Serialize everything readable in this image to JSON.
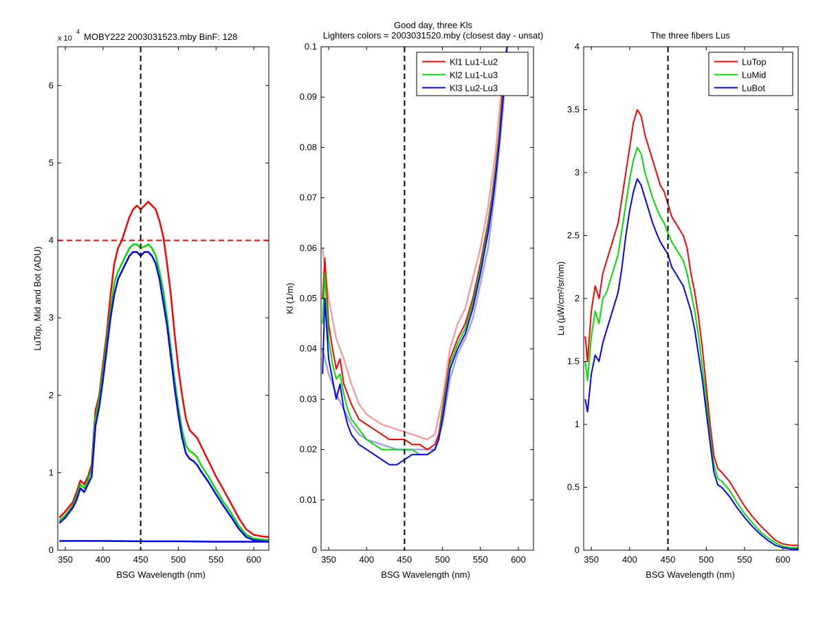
{
  "chart_data": [
    {
      "type": "line",
      "exponent_label": {
        "base": "x 10",
        "power": "4"
      },
      "title": "MOBY222  2003031523.mby BinF: 128",
      "xlabel": "BSG Wavelength (nm)",
      "ylabel": "LuTop, Mid and Bot (ADU)",
      "xlim": [
        340,
        620
      ],
      "ylim": [
        0,
        6.5
      ],
      "xticks": [
        350,
        400,
        450,
        500,
        550,
        600
      ],
      "yticks": [
        0,
        1,
        2,
        3,
        4,
        5,
        6
      ],
      "grid": false,
      "legend": null,
      "reference_lines": [
        {
          "orientation": "vertical",
          "value": 450,
          "color": "#000000",
          "style": "dashed"
        },
        {
          "orientation": "horizontal",
          "value": 4,
          "color": "#ff0000",
          "style": "dashed"
        }
      ],
      "series": [
        {
          "color": "#ff0000",
          "x": [
            342,
            350,
            360,
            365,
            370,
            375,
            380,
            385,
            390,
            395,
            400,
            405,
            410,
            415,
            420,
            425,
            430,
            435,
            440,
            445,
            450,
            455,
            460,
            465,
            470,
            475,
            480,
            485,
            490,
            495,
            500,
            505,
            510,
            515,
            520,
            525,
            530,
            540,
            550,
            560,
            570,
            580,
            590,
            600,
            610,
            620
          ],
          "y": [
            0.42,
            0.5,
            0.62,
            0.75,
            0.9,
            0.85,
            0.95,
            1.1,
            1.8,
            2.0,
            2.4,
            2.8,
            3.3,
            3.7,
            3.9,
            4.0,
            4.15,
            4.3,
            4.4,
            4.45,
            4.4,
            4.45,
            4.5,
            4.45,
            4.4,
            4.25,
            4.05,
            3.7,
            3.3,
            2.8,
            2.35,
            2.0,
            1.7,
            1.55,
            1.5,
            1.45,
            1.35,
            1.15,
            0.95,
            0.78,
            0.6,
            0.42,
            0.27,
            0.2,
            0.18,
            0.17
          ]
        },
        {
          "color": "#00dd00",
          "x": [
            342,
            350,
            360,
            365,
            370,
            375,
            380,
            385,
            390,
            395,
            400,
            405,
            410,
            415,
            420,
            425,
            430,
            435,
            440,
            445,
            450,
            455,
            460,
            465,
            470,
            475,
            480,
            485,
            490,
            495,
            500,
            505,
            510,
            515,
            520,
            525,
            530,
            540,
            550,
            560,
            570,
            580,
            590,
            600,
            610,
            620
          ],
          "y": [
            0.38,
            0.45,
            0.58,
            0.7,
            0.85,
            0.8,
            0.9,
            1.05,
            1.7,
            1.95,
            2.3,
            2.7,
            3.1,
            3.45,
            3.6,
            3.7,
            3.8,
            3.9,
            3.95,
            3.95,
            3.9,
            3.92,
            3.95,
            3.9,
            3.8,
            3.6,
            3.35,
            3.0,
            2.6,
            2.2,
            1.85,
            1.55,
            1.35,
            1.28,
            1.25,
            1.2,
            1.1,
            0.95,
            0.78,
            0.62,
            0.48,
            0.32,
            0.2,
            0.15,
            0.14,
            0.13
          ]
        },
        {
          "color": "#0000ff",
          "x": [
            342,
            350,
            360,
            365,
            370,
            375,
            380,
            385,
            390,
            395,
            400,
            405,
            410,
            415,
            420,
            425,
            430,
            435,
            440,
            445,
            450,
            455,
            460,
            465,
            470,
            475,
            480,
            485,
            490,
            495,
            500,
            505,
            510,
            515,
            520,
            525,
            530,
            540,
            550,
            560,
            570,
            580,
            590,
            600,
            610,
            620
          ],
          "y": [
            0.35,
            0.42,
            0.55,
            0.65,
            0.8,
            0.75,
            0.85,
            0.95,
            1.6,
            1.85,
            2.2,
            2.6,
            3.0,
            3.3,
            3.5,
            3.6,
            3.7,
            3.8,
            3.85,
            3.85,
            3.8,
            3.85,
            3.85,
            3.8,
            3.7,
            3.5,
            3.2,
            2.9,
            2.5,
            2.1,
            1.75,
            1.45,
            1.25,
            1.18,
            1.15,
            1.1,
            1.02,
            0.88,
            0.72,
            0.57,
            0.43,
            0.28,
            0.17,
            0.13,
            0.12,
            0.11
          ]
        },
        {
          "color": "#0000ff",
          "x": [
            342,
            400,
            450,
            500,
            550,
            600,
            620
          ],
          "y": [
            0.12,
            0.12,
            0.115,
            0.115,
            0.11,
            0.11,
            0.11
          ]
        }
      ]
    },
    {
      "type": "line",
      "title": "Good day, three Kls",
      "subtitle": "Lighters colors = 2003031520.mby (closest day - unsat)",
      "xlabel": "BSG Wavelength (nm)",
      "ylabel": "Kl (1/m)",
      "xlim": [
        340,
        620
      ],
      "ylim": [
        0,
        0.1
      ],
      "xticks": [
        350,
        400,
        450,
        500,
        550,
        600
      ],
      "yticks": [
        0,
        0.01,
        0.02,
        0.03,
        0.04,
        0.05,
        0.06,
        0.07,
        0.08,
        0.09,
        0.1
      ],
      "grid": false,
      "legend": "top-right",
      "reference_lines": [
        {
          "orientation": "vertical",
          "value": 450,
          "color": "#000000",
          "style": "dashed"
        }
      ],
      "series": [
        {
          "name": "Kl1 Lu1-Lu2",
          "color": "#ff0000",
          "x": [
            342,
            345,
            350,
            355,
            360,
            365,
            370,
            375,
            380,
            390,
            400,
            410,
            420,
            430,
            440,
            450,
            460,
            470,
            480,
            490,
            495,
            500,
            505,
            510,
            520,
            530,
            540,
            550,
            560,
            565,
            570,
            575,
            580,
            585
          ],
          "y": [
            0.05,
            0.058,
            0.045,
            0.04,
            0.036,
            0.038,
            0.033,
            0.031,
            0.029,
            0.026,
            0.025,
            0.024,
            0.023,
            0.022,
            0.022,
            0.022,
            0.021,
            0.021,
            0.02,
            0.021,
            0.023,
            0.028,
            0.033,
            0.038,
            0.042,
            0.045,
            0.05,
            0.057,
            0.065,
            0.07,
            0.076,
            0.083,
            0.093,
            0.1
          ]
        },
        {
          "name": "Kl2 Lu1-Lu3",
          "color": "#00dd00",
          "x": [
            342,
            345,
            350,
            355,
            360,
            365,
            370,
            375,
            380,
            390,
            400,
            410,
            420,
            430,
            440,
            450,
            460,
            470,
            480,
            490,
            495,
            500,
            505,
            510,
            520,
            530,
            540,
            550,
            560,
            565,
            570,
            575,
            580,
            585
          ],
          "y": [
            0.045,
            0.055,
            0.042,
            0.037,
            0.034,
            0.035,
            0.031,
            0.028,
            0.026,
            0.024,
            0.022,
            0.021,
            0.02,
            0.02,
            0.02,
            0.02,
            0.02,
            0.019,
            0.019,
            0.02,
            0.022,
            0.027,
            0.032,
            0.037,
            0.041,
            0.044,
            0.049,
            0.056,
            0.064,
            0.069,
            0.075,
            0.082,
            0.091,
            0.1
          ]
        },
        {
          "name": "Kl3 Lu2-Lu3",
          "color": "#0000ff",
          "x": [
            342,
            345,
            350,
            355,
            360,
            365,
            370,
            375,
            380,
            390,
            400,
            410,
            420,
            430,
            440,
            450,
            460,
            470,
            480,
            490,
            495,
            500,
            505,
            510,
            520,
            530,
            540,
            550,
            560,
            565,
            570,
            575,
            580,
            585
          ],
          "y": [
            0.035,
            0.05,
            0.038,
            0.034,
            0.03,
            0.033,
            0.028,
            0.025,
            0.023,
            0.021,
            0.02,
            0.019,
            0.018,
            0.017,
            0.017,
            0.018,
            0.019,
            0.019,
            0.019,
            0.02,
            0.022,
            0.026,
            0.031,
            0.036,
            0.04,
            0.043,
            0.048,
            0.055,
            0.063,
            0.068,
            0.074,
            0.081,
            0.09,
            0.1
          ]
        },
        {
          "color": "#f4a0a0",
          "x": [
            342,
            350,
            360,
            370,
            380,
            390,
            400,
            420,
            440,
            460,
            480,
            490,
            500,
            510,
            520,
            530,
            540,
            550,
            560,
            570,
            580,
            585
          ],
          "y": [
            0.06,
            0.05,
            0.042,
            0.038,
            0.033,
            0.029,
            0.027,
            0.025,
            0.024,
            0.023,
            0.022,
            0.023,
            0.03,
            0.04,
            0.045,
            0.048,
            0.054,
            0.06,
            0.068,
            0.079,
            0.095,
            0.1
          ]
        },
        {
          "color": "#a0a0f4",
          "x": [
            342,
            350,
            360,
            370,
            380,
            390,
            400,
            420,
            440,
            460,
            480,
            490,
            500,
            510,
            520,
            530,
            540,
            550,
            560,
            570,
            580,
            585
          ],
          "y": [
            0.04,
            0.035,
            0.031,
            0.028,
            0.025,
            0.023,
            0.022,
            0.021,
            0.02,
            0.02,
            0.02,
            0.02,
            0.025,
            0.034,
            0.039,
            0.042,
            0.046,
            0.053,
            0.06,
            0.072,
            0.088,
            0.1
          ]
        }
      ]
    },
    {
      "type": "line",
      "title": "The three fibers Lus",
      "xlabel": "BSG Wavelength (nm)",
      "ylabel": "Lu (µW/cm²/sr/nm)",
      "xlim": [
        340,
        620
      ],
      "ylim": [
        0,
        4
      ],
      "xticks": [
        350,
        400,
        450,
        500,
        550,
        600
      ],
      "yticks": [
        0,
        0.5,
        1,
        1.5,
        2,
        2.5,
        3,
        3.5,
        4
      ],
      "grid": false,
      "legend": "top-right",
      "reference_lines": [
        {
          "orientation": "vertical",
          "value": 450,
          "color": "#000000",
          "style": "dashed"
        }
      ],
      "series": [
        {
          "name": "LuTop",
          "color": "#ff0000",
          "x": [
            342,
            345,
            350,
            355,
            360,
            365,
            370,
            375,
            380,
            385,
            390,
            395,
            400,
            405,
            410,
            415,
            420,
            425,
            430,
            435,
            440,
            445,
            450,
            455,
            460,
            465,
            470,
            475,
            480,
            485,
            490,
            495,
            500,
            505,
            510,
            515,
            520,
            530,
            540,
            550,
            560,
            570,
            580,
            590,
            600,
            610,
            620
          ],
          "y": [
            1.7,
            1.5,
            1.9,
            2.1,
            2.0,
            2.2,
            2.3,
            2.4,
            2.5,
            2.6,
            2.8,
            3.0,
            3.2,
            3.4,
            3.5,
            3.45,
            3.3,
            3.2,
            3.1,
            3.0,
            2.9,
            2.85,
            2.75,
            2.65,
            2.6,
            2.55,
            2.5,
            2.4,
            2.2,
            2.05,
            1.85,
            1.6,
            1.3,
            1.0,
            0.75,
            0.65,
            0.62,
            0.55,
            0.45,
            0.35,
            0.27,
            0.2,
            0.14,
            0.08,
            0.05,
            0.04,
            0.04
          ]
        },
        {
          "name": "LuMid",
          "color": "#00dd00",
          "x": [
            342,
            345,
            350,
            355,
            360,
            365,
            370,
            375,
            380,
            385,
            390,
            395,
            400,
            405,
            410,
            415,
            420,
            425,
            430,
            435,
            440,
            445,
            450,
            455,
            460,
            465,
            470,
            475,
            480,
            485,
            490,
            495,
            500,
            505,
            510,
            515,
            520,
            530,
            540,
            550,
            560,
            570,
            580,
            590,
            600,
            610,
            620
          ],
          "y": [
            1.5,
            1.35,
            1.7,
            1.9,
            1.8,
            2.0,
            2.05,
            2.15,
            2.25,
            2.35,
            2.55,
            2.75,
            2.95,
            3.1,
            3.2,
            3.15,
            3.0,
            2.9,
            2.8,
            2.72,
            2.65,
            2.6,
            2.52,
            2.45,
            2.4,
            2.35,
            2.3,
            2.2,
            2.05,
            1.9,
            1.7,
            1.45,
            1.2,
            0.9,
            0.68,
            0.57,
            0.55,
            0.48,
            0.38,
            0.29,
            0.22,
            0.15,
            0.1,
            0.06,
            0.03,
            0.02,
            0.02
          ]
        },
        {
          "name": "LuBot",
          "color": "#0000ff",
          "x": [
            342,
            345,
            350,
            355,
            360,
            365,
            370,
            375,
            380,
            385,
            390,
            395,
            400,
            405,
            410,
            415,
            420,
            425,
            430,
            435,
            440,
            445,
            450,
            455,
            460,
            465,
            470,
            475,
            480,
            485,
            490,
            495,
            500,
            505,
            510,
            515,
            520,
            530,
            540,
            550,
            560,
            570,
            580,
            590,
            600,
            610,
            620
          ],
          "y": [
            1.2,
            1.1,
            1.4,
            1.55,
            1.5,
            1.65,
            1.75,
            1.85,
            1.95,
            2.05,
            2.25,
            2.5,
            2.7,
            2.85,
            2.95,
            2.9,
            2.8,
            2.7,
            2.6,
            2.52,
            2.45,
            2.4,
            2.35,
            2.25,
            2.2,
            2.15,
            2.1,
            2.0,
            1.9,
            1.75,
            1.55,
            1.35,
            1.1,
            0.85,
            0.62,
            0.52,
            0.5,
            0.43,
            0.34,
            0.26,
            0.19,
            0.13,
            0.08,
            0.04,
            0.02,
            0.01,
            0.01
          ]
        }
      ]
    }
  ]
}
